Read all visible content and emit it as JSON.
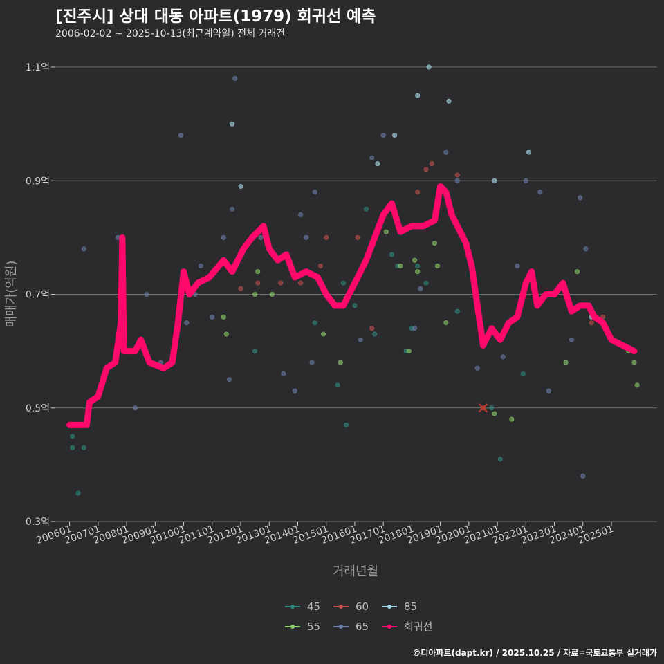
{
  "chart_data": {
    "type": "scatter",
    "title": "[진주시] 상대 대동 아파트(1979) 회귀선 예측",
    "subtitle": "2006-02-02 ~ 2025-10-13(최근계약일) 전체 거래건",
    "xlabel": "거래년월",
    "ylabel": "매매가(억원)",
    "ylim": [
      0.3,
      1.1
    ],
    "xlim": [
      2005.5,
      2026.6
    ],
    "y_ticks": [
      {
        "value": 0.3,
        "label": "0.3억"
      },
      {
        "value": 0.5,
        "label": "0.5억"
      },
      {
        "value": 0.7,
        "label": "0.7억"
      },
      {
        "value": 0.9,
        "label": "0.9억"
      },
      {
        "value": 1.1,
        "label": "1.1억"
      }
    ],
    "x_ticks": [
      {
        "value": 2006.0,
        "label": "200601"
      },
      {
        "value": 2007.0,
        "label": "200701"
      },
      {
        "value": 2008.0,
        "label": "200801"
      },
      {
        "value": 2009.0,
        "label": "200901"
      },
      {
        "value": 2010.0,
        "label": "201001"
      },
      {
        "value": 2011.0,
        "label": "201101"
      },
      {
        "value": 2012.0,
        "label": "201201"
      },
      {
        "value": 2013.0,
        "label": "201301"
      },
      {
        "value": 2014.0,
        "label": "201401"
      },
      {
        "value": 2015.0,
        "label": "201501"
      },
      {
        "value": 2016.0,
        "label": "201601"
      },
      {
        "value": 2017.0,
        "label": "201701"
      },
      {
        "value": 2018.0,
        "label": "201801"
      },
      {
        "value": 2019.0,
        "label": "201901"
      },
      {
        "value": 2020.0,
        "label": "202001"
      },
      {
        "value": 2021.0,
        "label": "202101"
      },
      {
        "value": 2022.0,
        "label": "202201"
      },
      {
        "value": 2023.0,
        "label": "202301"
      },
      {
        "value": 2024.0,
        "label": "202401"
      },
      {
        "value": 2025.0,
        "label": "202501"
      }
    ],
    "legend": {
      "placement": "bottom",
      "items": [
        {
          "label": "45",
          "color": "#2e8b7e"
        },
        {
          "label": "60",
          "color": "#c0504d"
        },
        {
          "label": "85",
          "color": "#a8dcea"
        },
        {
          "label": "55",
          "color": "#8fd16a"
        },
        {
          "label": "65",
          "color": "#6b7fa8"
        },
        {
          "label": "회귀선",
          "color": "#ff0a6c"
        }
      ]
    },
    "series": [
      {
        "name": "45",
        "color": "#2e8b7e",
        "points": [
          [
            2006.1,
            0.45
          ],
          [
            2006.1,
            0.43
          ],
          [
            2006.3,
            0.35
          ],
          [
            2006.5,
            0.43
          ],
          [
            2012.5,
            0.6
          ],
          [
            2014.6,
            0.65
          ],
          [
            2015.4,
            0.54
          ],
          [
            2015.6,
            0.72
          ],
          [
            2015.7,
            0.47
          ],
          [
            2016.0,
            0.68
          ],
          [
            2016.4,
            0.85
          ],
          [
            2016.7,
            0.63
          ],
          [
            2017.3,
            0.77
          ],
          [
            2017.5,
            0.75
          ],
          [
            2017.8,
            0.6
          ],
          [
            2018.0,
            0.64
          ],
          [
            2018.2,
            0.75
          ],
          [
            2018.5,
            0.72
          ],
          [
            2019.6,
            0.67
          ],
          [
            2020.8,
            0.5
          ],
          [
            2021.1,
            0.41
          ],
          [
            2021.9,
            0.56
          ]
        ]
      },
      {
        "name": "55",
        "color": "#8fd16a",
        "points": [
          [
            2008.2,
            0.6
          ],
          [
            2011.4,
            0.66
          ],
          [
            2011.5,
            0.63
          ],
          [
            2012.5,
            0.7
          ],
          [
            2012.6,
            0.74
          ],
          [
            2013.1,
            0.7
          ],
          [
            2014.9,
            0.63
          ],
          [
            2015.5,
            0.58
          ],
          [
            2017.1,
            0.81
          ],
          [
            2017.6,
            0.75
          ],
          [
            2017.9,
            0.6
          ],
          [
            2018.1,
            0.76
          ],
          [
            2018.2,
            0.74
          ],
          [
            2018.8,
            0.79
          ],
          [
            2018.9,
            0.75
          ],
          [
            2019.2,
            0.65
          ],
          [
            2020.9,
            0.49
          ],
          [
            2021.5,
            0.48
          ],
          [
            2023.4,
            0.58
          ],
          [
            2023.8,
            0.74
          ],
          [
            2025.6,
            0.6
          ],
          [
            2025.8,
            0.58
          ],
          [
            2025.9,
            0.54
          ]
        ]
      },
      {
        "name": "60",
        "color": "#c0504d",
        "points": [
          [
            2010.3,
            0.71
          ],
          [
            2012.0,
            0.71
          ],
          [
            2012.6,
            0.72
          ],
          [
            2013.4,
            0.72
          ],
          [
            2014.1,
            0.72
          ],
          [
            2014.8,
            0.75
          ],
          [
            2015.0,
            0.8
          ],
          [
            2016.1,
            0.8
          ],
          [
            2016.6,
            0.64
          ],
          [
            2018.2,
            0.88
          ],
          [
            2018.5,
            0.92
          ],
          [
            2018.7,
            0.93
          ],
          [
            2019.6,
            0.91
          ],
          [
            2020.5,
            0.5
          ],
          [
            2024.3,
            0.65
          ],
          [
            2024.7,
            0.66
          ]
        ]
      },
      {
        "name": "65",
        "color": "#6b7fa8",
        "points": [
          [
            2006.5,
            0.78
          ],
          [
            2007.7,
            0.8
          ],
          [
            2008.3,
            0.5
          ],
          [
            2008.7,
            0.7
          ],
          [
            2009.2,
            0.58
          ],
          [
            2009.9,
            0.98
          ],
          [
            2010.1,
            0.65
          ],
          [
            2010.4,
            0.7
          ],
          [
            2010.6,
            0.75
          ],
          [
            2011.0,
            0.66
          ],
          [
            2011.4,
            0.8
          ],
          [
            2011.6,
            0.55
          ],
          [
            2011.7,
            0.85
          ],
          [
            2011.8,
            1.08
          ],
          [
            2012.7,
            0.8
          ],
          [
            2013.5,
            0.56
          ],
          [
            2013.9,
            0.53
          ],
          [
            2014.1,
            0.84
          ],
          [
            2014.3,
            0.8
          ],
          [
            2014.5,
            0.58
          ],
          [
            2014.6,
            0.88
          ],
          [
            2016.2,
            0.62
          ],
          [
            2016.6,
            0.94
          ],
          [
            2017.0,
            0.98
          ],
          [
            2017.3,
            0.85
          ],
          [
            2018.1,
            0.64
          ],
          [
            2018.3,
            0.71
          ],
          [
            2019.2,
            0.95
          ],
          [
            2019.6,
            0.9
          ],
          [
            2020.3,
            0.57
          ],
          [
            2021.2,
            0.59
          ],
          [
            2021.7,
            0.75
          ],
          [
            2022.0,
            0.9
          ],
          [
            2022.5,
            0.88
          ],
          [
            2022.8,
            0.53
          ],
          [
            2023.6,
            0.62
          ],
          [
            2023.9,
            0.87
          ],
          [
            2024.1,
            0.78
          ],
          [
            2024.0,
            0.38
          ]
        ]
      },
      {
        "name": "85",
        "color": "#a8dcea",
        "points": [
          [
            2011.7,
            1.0
          ],
          [
            2012.0,
            0.89
          ],
          [
            2016.8,
            0.93
          ],
          [
            2017.4,
            0.98
          ],
          [
            2018.2,
            1.05
          ],
          [
            2018.6,
            1.1
          ],
          [
            2019.3,
            1.04
          ],
          [
            2020.9,
            0.9
          ],
          [
            2022.1,
            0.95
          ],
          [
            2024.3,
            0.66
          ]
        ]
      },
      {
        "name": "회귀선",
        "color": "#ff0a6c",
        "line": true,
        "points": [
          [
            2006.0,
            0.47
          ],
          [
            2006.6,
            0.47
          ],
          [
            2006.7,
            0.51
          ],
          [
            2007.0,
            0.52
          ],
          [
            2007.3,
            0.57
          ],
          [
            2007.6,
            0.58
          ],
          [
            2007.8,
            0.65
          ],
          [
            2007.85,
            0.8
          ],
          [
            2007.9,
            0.6
          ],
          [
            2008.3,
            0.6
          ],
          [
            2008.5,
            0.62
          ],
          [
            2008.8,
            0.58
          ],
          [
            2009.3,
            0.57
          ],
          [
            2009.6,
            0.58
          ],
          [
            2009.8,
            0.65
          ],
          [
            2010.0,
            0.74
          ],
          [
            2010.2,
            0.7
          ],
          [
            2010.5,
            0.72
          ],
          [
            2010.9,
            0.73
          ],
          [
            2011.4,
            0.76
          ],
          [
            2011.7,
            0.74
          ],
          [
            2012.1,
            0.78
          ],
          [
            2012.4,
            0.8
          ],
          [
            2012.8,
            0.82
          ],
          [
            2013.0,
            0.78
          ],
          [
            2013.3,
            0.76
          ],
          [
            2013.6,
            0.77
          ],
          [
            2013.9,
            0.73
          ],
          [
            2014.3,
            0.74
          ],
          [
            2014.7,
            0.73
          ],
          [
            2015.0,
            0.7
          ],
          [
            2015.3,
            0.68
          ],
          [
            2015.6,
            0.68
          ],
          [
            2015.9,
            0.71
          ],
          [
            2016.1,
            0.73
          ],
          [
            2016.4,
            0.76
          ],
          [
            2016.7,
            0.8
          ],
          [
            2017.0,
            0.84
          ],
          [
            2017.3,
            0.86
          ],
          [
            2017.6,
            0.81
          ],
          [
            2018.0,
            0.82
          ],
          [
            2018.4,
            0.82
          ],
          [
            2018.8,
            0.83
          ],
          [
            2019.0,
            0.89
          ],
          [
            2019.2,
            0.88
          ],
          [
            2019.4,
            0.84
          ],
          [
            2019.7,
            0.81
          ],
          [
            2019.9,
            0.79
          ],
          [
            2020.1,
            0.75
          ],
          [
            2020.3,
            0.68
          ],
          [
            2020.5,
            0.61
          ],
          [
            2020.8,
            0.64
          ],
          [
            2021.1,
            0.62
          ],
          [
            2021.4,
            0.65
          ],
          [
            2021.7,
            0.66
          ],
          [
            2022.0,
            0.72
          ],
          [
            2022.2,
            0.74
          ],
          [
            2022.4,
            0.68
          ],
          [
            2022.7,
            0.7
          ],
          [
            2023.0,
            0.7
          ],
          [
            2023.3,
            0.72
          ],
          [
            2023.6,
            0.67
          ],
          [
            2023.9,
            0.68
          ],
          [
            2024.2,
            0.68
          ],
          [
            2024.4,
            0.66
          ],
          [
            2024.7,
            0.65
          ],
          [
            2025.0,
            0.62
          ],
          [
            2025.4,
            0.61
          ],
          [
            2025.8,
            0.6
          ]
        ]
      }
    ],
    "annotations": [
      {
        "type": "x-marker",
        "x": 2020.5,
        "y": 0.5,
        "color": "#c0392b"
      }
    ]
  },
  "footer": "©디아파트(dapt.kr) / 2025.10.25 / 자료=국토교통부 실거래가"
}
